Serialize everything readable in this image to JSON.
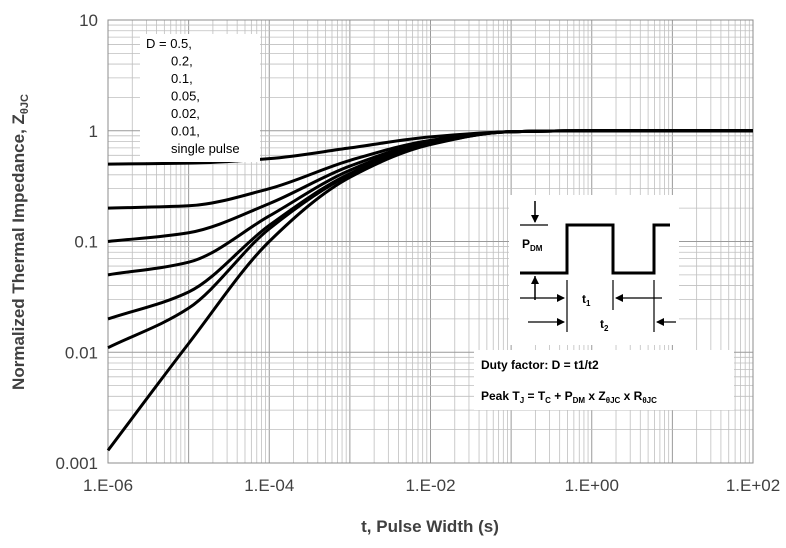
{
  "chart_data": {
    "type": "line",
    "xlabel": "t, Pulse Width (s)",
    "ylabel_main": "Normalized Thermal Impedance, Z",
    "ylabel_sub": "θJC",
    "x_scale": "log",
    "y_scale": "log",
    "xlim": [
      1e-06,
      100
    ],
    "ylim": [
      0.001,
      10
    ],
    "x_tick_labels": [
      "1.E-06",
      "1.E-04",
      "1.E-02",
      "1.E+00",
      "1.E+02"
    ],
    "y_tick_labels": [
      "0.001",
      "0.01",
      "0.1",
      "1",
      "10"
    ],
    "grid": true,
    "legend": [
      "D = 0.5,",
      "0.2,",
      "0.1,",
      "0.05,",
      "0.02,",
      "0.01,",
      "single pulse"
    ],
    "series": [
      {
        "x": [
          1e-06,
          1e-05,
          0.0001,
          0.001,
          0.01,
          0.1,
          1,
          10,
          100
        ],
        "values": [
          0.5,
          0.51,
          0.56,
          0.7,
          0.88,
          0.98,
          1.0,
          1.0,
          1.0
        ]
      },
      {
        "x": [
          1e-06,
          1e-05,
          0.0001,
          0.001,
          0.01,
          0.1,
          1,
          10,
          100
        ],
        "values": [
          0.2,
          0.21,
          0.3,
          0.54,
          0.82,
          0.98,
          1.0,
          1.0,
          1.0
        ]
      },
      {
        "x": [
          1e-06,
          1e-05,
          0.0001,
          0.001,
          0.01,
          0.1,
          1,
          10,
          100
        ],
        "values": [
          0.1,
          0.12,
          0.22,
          0.48,
          0.8,
          0.98,
          1.0,
          1.0,
          1.0
        ]
      },
      {
        "x": [
          1e-06,
          1e-05,
          0.0001,
          0.001,
          0.01,
          0.1,
          1,
          10,
          100
        ],
        "values": [
          0.05,
          0.065,
          0.17,
          0.44,
          0.78,
          0.98,
          1.0,
          1.0,
          1.0
        ]
      },
      {
        "x": [
          1e-06,
          1e-05,
          0.0001,
          0.001,
          0.01,
          0.1,
          1,
          10,
          100
        ],
        "values": [
          0.02,
          0.035,
          0.14,
          0.41,
          0.77,
          0.98,
          1.0,
          1.0,
          1.0
        ]
      },
      {
        "x": [
          1e-06,
          1e-05,
          0.0001,
          0.001,
          0.01,
          0.1,
          1,
          10,
          100
        ],
        "values": [
          0.011,
          0.025,
          0.13,
          0.4,
          0.76,
          0.98,
          1.0,
          1.0,
          1.0
        ]
      },
      {
        "x": [
          1e-06,
          1e-05,
          0.0001,
          0.001,
          0.01,
          0.1,
          1,
          10,
          100
        ],
        "values": [
          0.0013,
          0.012,
          0.1,
          0.38,
          0.75,
          0.98,
          1.0,
          1.0,
          1.0
        ]
      }
    ],
    "inset": {
      "pdm_main": "P",
      "pdm_sub": "DM",
      "t1_main": "t",
      "t1_sub": "1",
      "t2_main": "t",
      "t2_sub": "2",
      "duty_text": "Duty factor: D = t1/t2",
      "peak_parts": [
        {
          "t": "Peak T",
          "sub": false
        },
        {
          "t": "J",
          "sub": true
        },
        {
          "t": " = T",
          "sub": false
        },
        {
          "t": "C",
          "sub": true
        },
        {
          "t": " + P",
          "sub": false
        },
        {
          "t": "DM",
          "sub": true
        },
        {
          "t": " x Z",
          "sub": false
        },
        {
          "t": "θJC",
          "sub": true
        },
        {
          "t": " x R",
          "sub": false
        },
        {
          "t": "θJC",
          "sub": true
        }
      ]
    },
    "colors": {
      "line": "#000000",
      "grid": "#bfbfbf",
      "text": "#404040"
    }
  }
}
